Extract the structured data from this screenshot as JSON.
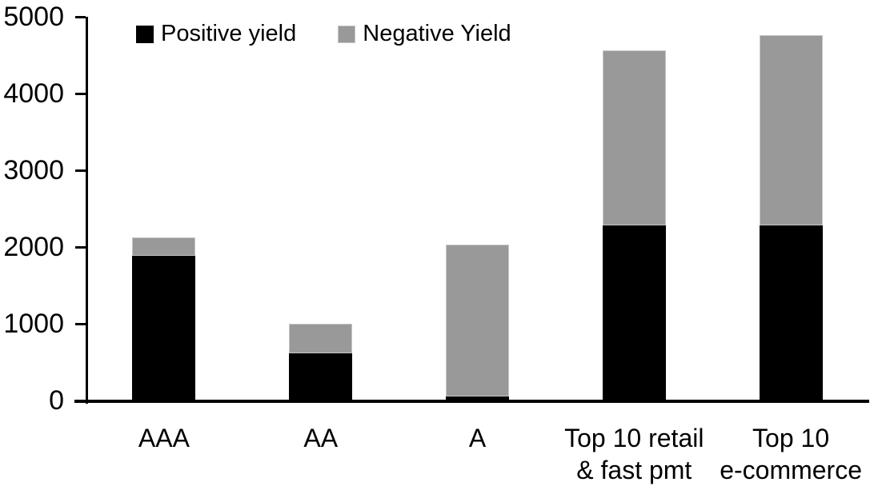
{
  "chart_data": {
    "type": "bar",
    "stacked": true,
    "title": "",
    "xlabel": "",
    "ylabel": "",
    "categories": [
      "AAA",
      "AA",
      "A",
      "Top 10 retail & fast pmt",
      "Top 10 e-commerce"
    ],
    "category_label_lines": [
      [
        "AAA"
      ],
      [
        "AA"
      ],
      [
        "A"
      ],
      [
        "Top 10 retail",
        "& fast pmt"
      ],
      [
        "Top 10",
        "e-commerce"
      ]
    ],
    "series": [
      {
        "name": "Positive yield",
        "color": "#000000",
        "values": [
          1890,
          610,
          50,
          2280,
          2280
        ]
      },
      {
        "name": "Negative Yield",
        "color": "#999999",
        "values": [
          240,
          390,
          1980,
          2280,
          2480
        ]
      }
    ],
    "series_totals_note": "totals per category: 2130, 1000, 2030, 4560, 4760",
    "ylim": [
      0,
      5000
    ],
    "yticks": [
      0,
      1000,
      2000,
      3000,
      4000,
      5000
    ],
    "grid": false,
    "legend_position": "top-left-inside",
    "colors": {
      "positive": "#000000",
      "negative": "#999999",
      "negative_edge": "#c6c6c6",
      "axis": "#000000",
      "background": "#ffffff"
    }
  }
}
